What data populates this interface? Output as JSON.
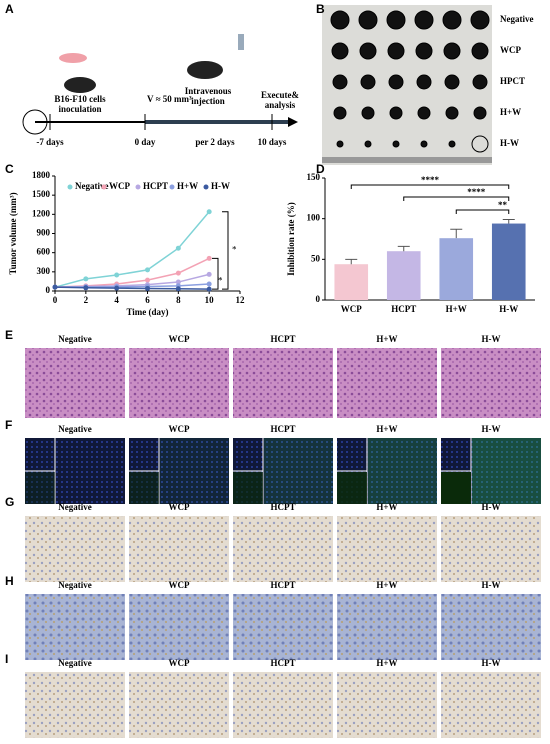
{
  "panel_labels": [
    "A",
    "B",
    "C",
    "D",
    "E",
    "F",
    "G",
    "H",
    "I"
  ],
  "schematic": {
    "cells": [
      "B16-F10 cells",
      "inoculation"
    ],
    "volume": "V ≈ 50 mm³",
    "injection": [
      "Intravenous",
      "injection"
    ],
    "analysis": [
      "Execute&",
      "analysis"
    ],
    "times": [
      "-7 days",
      "0 day",
      "per 2 days",
      "10 days"
    ]
  },
  "photo_groups": [
    "Negative",
    "WCP",
    "HPCT",
    "H+W",
    "H-W"
  ],
  "chart_data": [
    {
      "type": "line",
      "x_label": "Time (day)",
      "y_label": "Tumor volume (mm³)",
      "x": [
        0,
        2,
        4,
        6,
        8,
        10
      ],
      "xlim": [
        0,
        12
      ],
      "xticks": [
        0,
        2,
        4,
        6,
        8,
        10,
        12
      ],
      "ylim": [
        0,
        1800
      ],
      "yticks": [
        0,
        300,
        600,
        900,
        1200,
        1500,
        1800
      ],
      "series": [
        {
          "name": "Negative",
          "color": "#7fd3d6",
          "values": [
            60,
            190,
            250,
            330,
            670,
            1240
          ]
        },
        {
          "name": "WCP",
          "color": "#f3a2b4",
          "values": [
            60,
            80,
            110,
            170,
            280,
            510
          ]
        },
        {
          "name": "HCPT",
          "color": "#b7a8e2",
          "values": [
            60,
            70,
            80,
            100,
            140,
            260
          ]
        },
        {
          "name": "H+W",
          "color": "#8b9fe0",
          "values": [
            60,
            62,
            65,
            70,
            80,
            110
          ]
        },
        {
          "name": "H-W",
          "color": "#3b5aa0",
          "values": [
            60,
            50,
            45,
            40,
            35,
            30
          ]
        }
      ],
      "annotations": [
        "*",
        "*"
      ]
    },
    {
      "type": "bar",
      "y_label": "Inhibition rate (%)",
      "categories": [
        "WCP",
        "HCPT",
        "H+W",
        "H-W"
      ],
      "values": [
        44,
        60,
        76,
        94
      ],
      "errors": [
        6,
        6,
        11,
        5
      ],
      "colors": [
        "#f4c7d1",
        "#c4b7e5",
        "#9ba9dc",
        "#5671b0"
      ],
      "ylim": [
        0,
        150
      ],
      "yticks": [
        0,
        50,
        100,
        150
      ],
      "annotations": [
        "****",
        "****",
        "**"
      ]
    }
  ],
  "histology_rows": [
    [
      "Negative",
      "WCP",
      "HCPT",
      "H+W",
      "H-W"
    ],
    [
      "Negative",
      "WCP",
      "HCPT",
      "H+W",
      "H-W"
    ],
    [
      "Negative",
      "WCP",
      "HCPT",
      "H+W",
      "H-W"
    ],
    [
      "Negative",
      "WCP",
      "HCPT",
      "H+W",
      "H-W"
    ],
    [
      "Negative",
      "WCP",
      "HCPT",
      "H+W",
      "H-W"
    ]
  ]
}
